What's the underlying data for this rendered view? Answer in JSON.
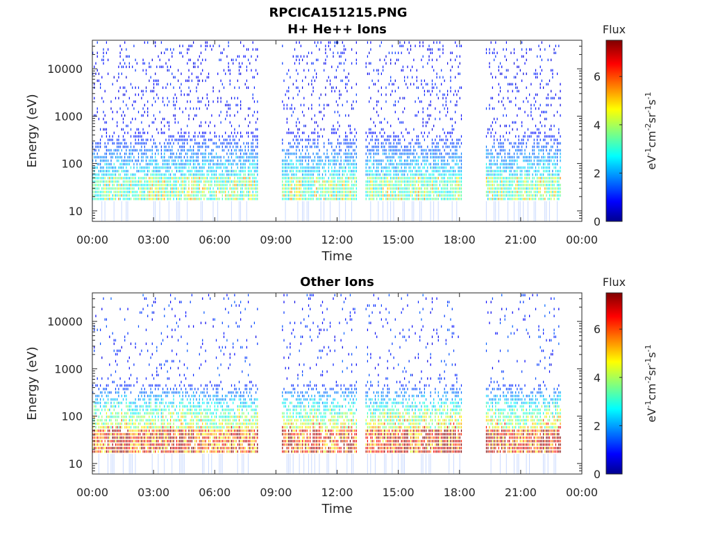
{
  "figure": {
    "title": "RPCICA151215.PNG"
  },
  "chart_data": [
    {
      "type": "heatmap",
      "title": "H+ He++ Ions",
      "xlabel": "Time",
      "ylabel": "Energy (eV)",
      "x_ticks": [
        "00:00",
        "03:00",
        "06:00",
        "09:00",
        "12:00",
        "15:00",
        "18:00",
        "21:00",
        "00:00"
      ],
      "xlim_hours": [
        0,
        24
      ],
      "y_scale": "log",
      "y_ticks": [
        "10",
        "100",
        "1000",
        "10000"
      ],
      "ylim": [
        6,
        40000
      ],
      "colorbar": {
        "title": "Flux",
        "label": "eV-1cm-2sr-1s-1",
        "ticks": [
          "0",
          "2",
          "4",
          "6"
        ],
        "range": [
          0,
          7.5
        ],
        "colormap": "jet"
      },
      "data_segments_hours": [
        [
          0.0,
          8.15
        ],
        [
          9.3,
          13.0
        ],
        [
          13.4,
          18.15
        ],
        [
          19.3,
          23.0
        ]
      ],
      "dominant_band_eV": [
        16,
        45
      ],
      "band_level": 3.2,
      "background_level": 1.0
    },
    {
      "type": "heatmap",
      "title": "Other Ions",
      "xlabel": "Time",
      "ylabel": "Energy (eV)",
      "x_ticks": [
        "00:00",
        "03:00",
        "06:00",
        "09:00",
        "12:00",
        "15:00",
        "18:00",
        "21:00",
        "00:00"
      ],
      "xlim_hours": [
        0,
        24
      ],
      "y_scale": "log",
      "y_ticks": [
        "10",
        "100",
        "1000",
        "10000"
      ],
      "ylim": [
        6,
        40000
      ],
      "colorbar": {
        "title": "Flux",
        "label": "eV-1cm-2sr-1s-1",
        "ticks": [
          "0",
          "2",
          "4",
          "6"
        ],
        "range": [
          0,
          7.5
        ],
        "colormap": "jet"
      },
      "data_segments_hours": [
        [
          0.0,
          8.15
        ],
        [
          9.3,
          13.0
        ],
        [
          13.4,
          18.15
        ],
        [
          19.3,
          23.0
        ]
      ],
      "dominant_band_eV": [
        16,
        45
      ],
      "band_level": 5.8,
      "background_level": 1.2
    }
  ]
}
